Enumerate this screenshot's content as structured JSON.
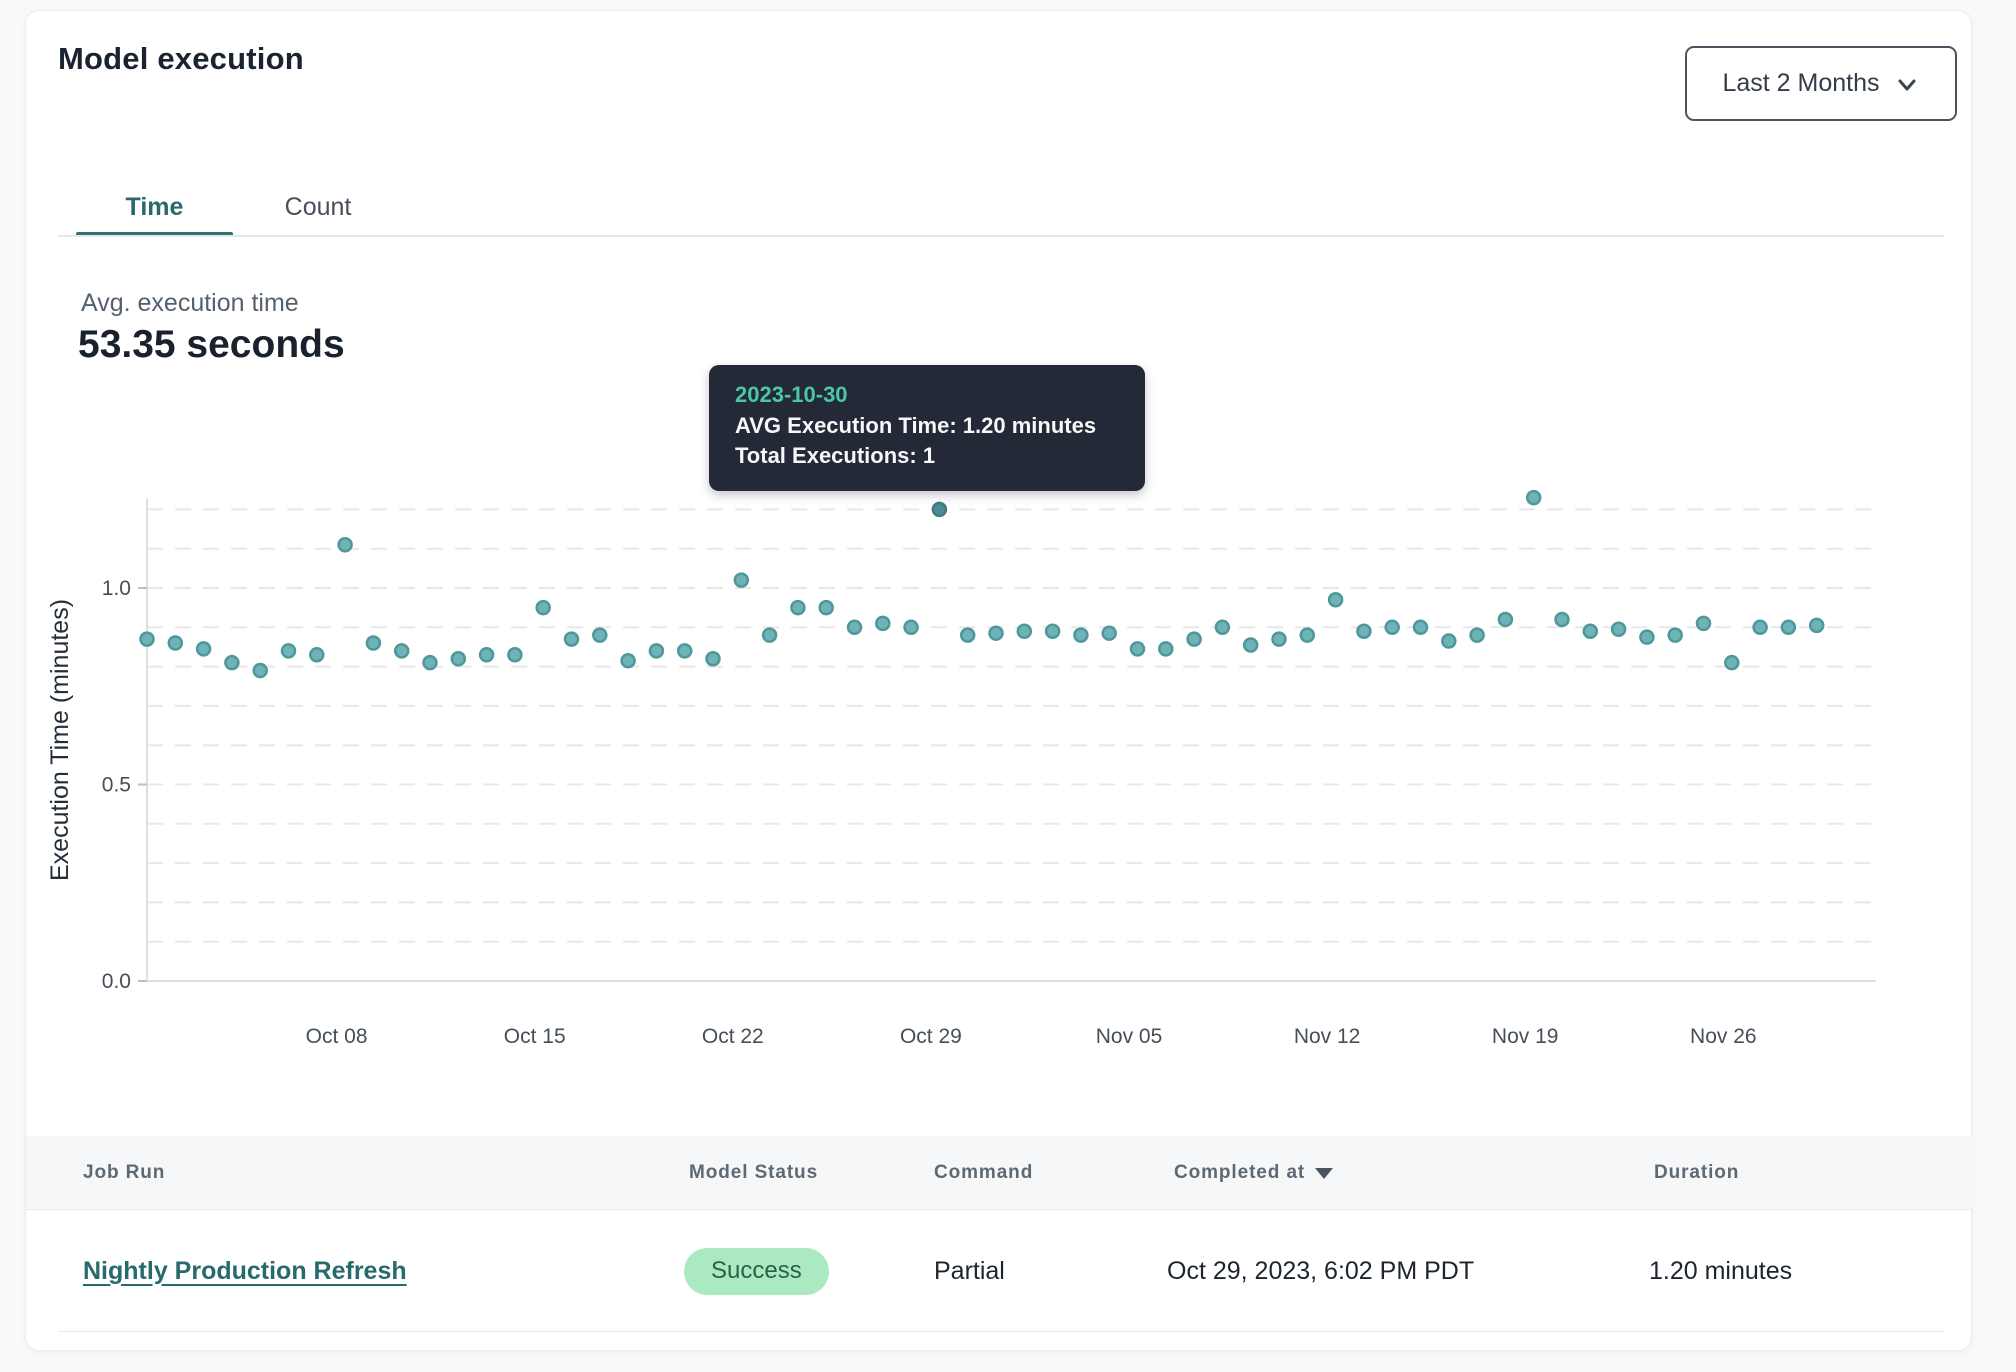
{
  "header": {
    "title": "Model execution",
    "range_selector": {
      "label": "Last 2 Months"
    }
  },
  "tabs": [
    {
      "label": "Time",
      "active": true
    },
    {
      "label": "Count",
      "active": false
    }
  ],
  "summary": {
    "label": "Avg. execution time",
    "value": "53.35 seconds"
  },
  "tooltip": {
    "date": "2023-10-30",
    "avg_line": "AVG Execution Time: 1.20 minutes",
    "total_line": "Total Executions: 1"
  },
  "chart_data": {
    "type": "scatter",
    "title": "",
    "xlabel": "",
    "ylabel": "Execution Time (minutes)",
    "ylim": [
      0,
      1.25
    ],
    "y_ticks": [
      0,
      0.5,
      1.0
    ],
    "y_gridline_step": 0.1,
    "y_gridline_max": 1.2,
    "grid": "dashed",
    "legend_position": "none",
    "x_tick_labels": [
      "Oct 08",
      "Oct 15",
      "Oct 22",
      "Oct 29",
      "Nov 05",
      "Nov 12",
      "Nov 19",
      "Nov 26"
    ],
    "x_tick_day_index": [
      6.7,
      13.7,
      20.7,
      27.7,
      34.7,
      41.7,
      48.7,
      55.7
    ],
    "dates": [
      "2023-10-02",
      "2023-10-03",
      "2023-10-04",
      "2023-10-05",
      "2023-10-06",
      "2023-10-07",
      "2023-10-08",
      "2023-10-09",
      "2023-10-10",
      "2023-10-11",
      "2023-10-12",
      "2023-10-13",
      "2023-10-14",
      "2023-10-15",
      "2023-10-16",
      "2023-10-17",
      "2023-10-18",
      "2023-10-19",
      "2023-10-20",
      "2023-10-21",
      "2023-10-22",
      "2023-10-23",
      "2023-10-24",
      "2023-10-25",
      "2023-10-26",
      "2023-10-27",
      "2023-10-28",
      "2023-10-29",
      "2023-10-30",
      "2023-10-31",
      "2023-11-01",
      "2023-11-02",
      "2023-11-03",
      "2023-11-04",
      "2023-11-05",
      "2023-11-06",
      "2023-11-07",
      "2023-11-08",
      "2023-11-09",
      "2023-11-10",
      "2023-11-11",
      "2023-11-12",
      "2023-11-13",
      "2023-11-14",
      "2023-11-15",
      "2023-11-16",
      "2023-11-17",
      "2023-11-18",
      "2023-11-19",
      "2023-11-20",
      "2023-11-21",
      "2023-11-22",
      "2023-11-23",
      "2023-11-24",
      "2023-11-25",
      "2023-11-26",
      "2023-11-27",
      "2023-11-28",
      "2023-11-29",
      "2023-11-30"
    ],
    "values": [
      0.87,
      0.86,
      0.845,
      0.81,
      0.79,
      0.84,
      0.83,
      1.11,
      0.86,
      0.84,
      0.81,
      0.82,
      0.83,
      0.83,
      0.95,
      0.87,
      0.88,
      0.815,
      0.84,
      0.84,
      0.82,
      1.02,
      0.88,
      0.95,
      0.95,
      0.9,
      0.91,
      0.9,
      1.2,
      0.88,
      0.885,
      0.89,
      0.89,
      0.88,
      0.885,
      0.845,
      0.845,
      0.87,
      0.9,
      0.855,
      0.87,
      0.88,
      0.97,
      0.89,
      0.9,
      0.9,
      0.865,
      0.88,
      0.92,
      1.23,
      0.92,
      0.89,
      0.895,
      0.875,
      0.88,
      0.91,
      0.81,
      0.9,
      0.9,
      0.905
    ],
    "highlight_index": 28,
    "point_color": "#6fb3b6",
    "point_stroke": "#4e989c",
    "highlight_fill": "#4b8b91",
    "highlight_stroke": "#3e7a80",
    "gridline_color": "#e7e8ea",
    "axis_color": "#dde0e3",
    "tick_label_color": "#454f59"
  },
  "table": {
    "columns": [
      {
        "label": "Job Run",
        "sortable": false
      },
      {
        "label": "Model Status",
        "sortable": false
      },
      {
        "label": "Command",
        "sortable": false
      },
      {
        "label": "Completed at",
        "sortable": true,
        "sort_direction": "desc"
      },
      {
        "label": "Duration",
        "sortable": false
      }
    ],
    "rows": [
      {
        "job_run": "Nightly Production Refresh",
        "model_status": "Success",
        "status_color": "#abe9c0",
        "command": "Partial",
        "completed_at": "Oct 29, 2023, 6:02 PM PDT",
        "duration": "1.20 minutes"
      }
    ]
  }
}
